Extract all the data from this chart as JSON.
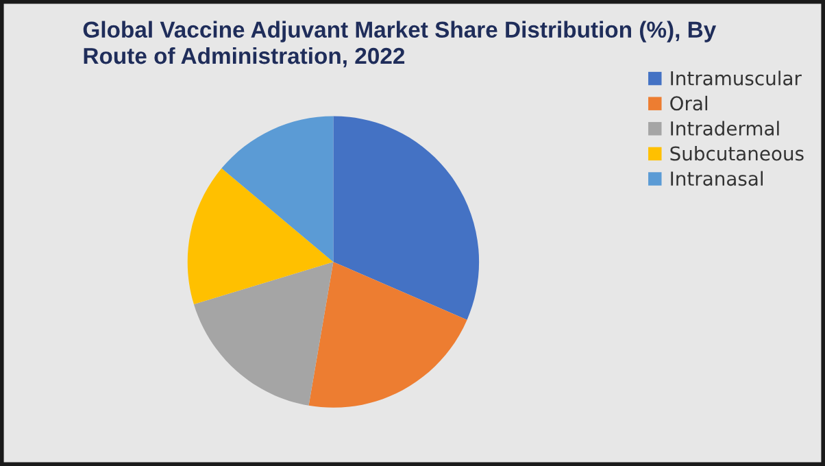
{
  "chart_data": {
    "type": "pie",
    "title": "Global Vaccine Adjuvant Market Share Distribution (%), By\nRoute of Administration, 2022",
    "categories": [
      "Intramuscular",
      "Oral",
      "Intradermal",
      "Subcutaneous",
      "Intranasal"
    ],
    "values": [
      31.5,
      21.2,
      17.6,
      15.8,
      13.9
    ],
    "colors": [
      "#4472c4",
      "#ed7d31",
      "#a5a5a5",
      "#ffc000",
      "#5b9bd5"
    ],
    "legend": "top right"
  }
}
